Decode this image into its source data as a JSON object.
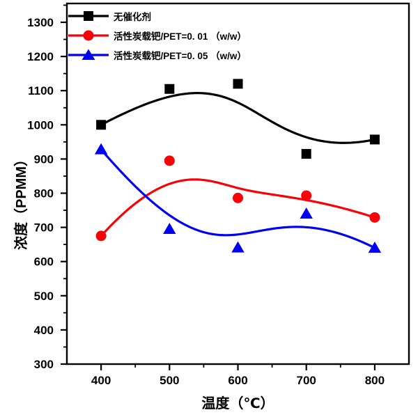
{
  "chart_data": {
    "type": "line",
    "title": "",
    "xlabel": "温度（℃）",
    "ylabel": "浓度（PPMM）",
    "x": [
      400,
      500,
      600,
      700,
      800
    ],
    "series": [
      {
        "name": "无催化剂",
        "color": "#000000",
        "marker": "square",
        "values": [
          1000,
          1105,
          1120,
          915,
          957
        ]
      },
      {
        "name": "活性炭载钯/PET=0. 01 （w/w）",
        "color": "#fb0006",
        "marker": "circle",
        "values": [
          675,
          895,
          786,
          793,
          729
        ]
      },
      {
        "name": "活性炭载钯/PET=0. 05 （w/w）",
        "color": "#0000f5",
        "marker": "triangle",
        "values": [
          928,
          695,
          641,
          740,
          640
        ]
      }
    ],
    "xlim": [
      350,
      850
    ],
    "ylim": [
      300,
      1355
    ],
    "xticks": [
      400,
      500,
      600,
      700,
      800
    ],
    "yticks": [
      300,
      400,
      500,
      600,
      700,
      800,
      900,
      1000,
      1100,
      1200,
      1300
    ],
    "x_minor_ticks": [
      450,
      550,
      650,
      750
    ],
    "y_minor_ticks": [
      350,
      450,
      550,
      650,
      750,
      850,
      950,
      1050,
      1150,
      1250,
      1350
    ],
    "grid": false,
    "legend_position": "top-left",
    "line_style": "b-spline",
    "axis_color": "#000000",
    "background": "#ffffff"
  }
}
